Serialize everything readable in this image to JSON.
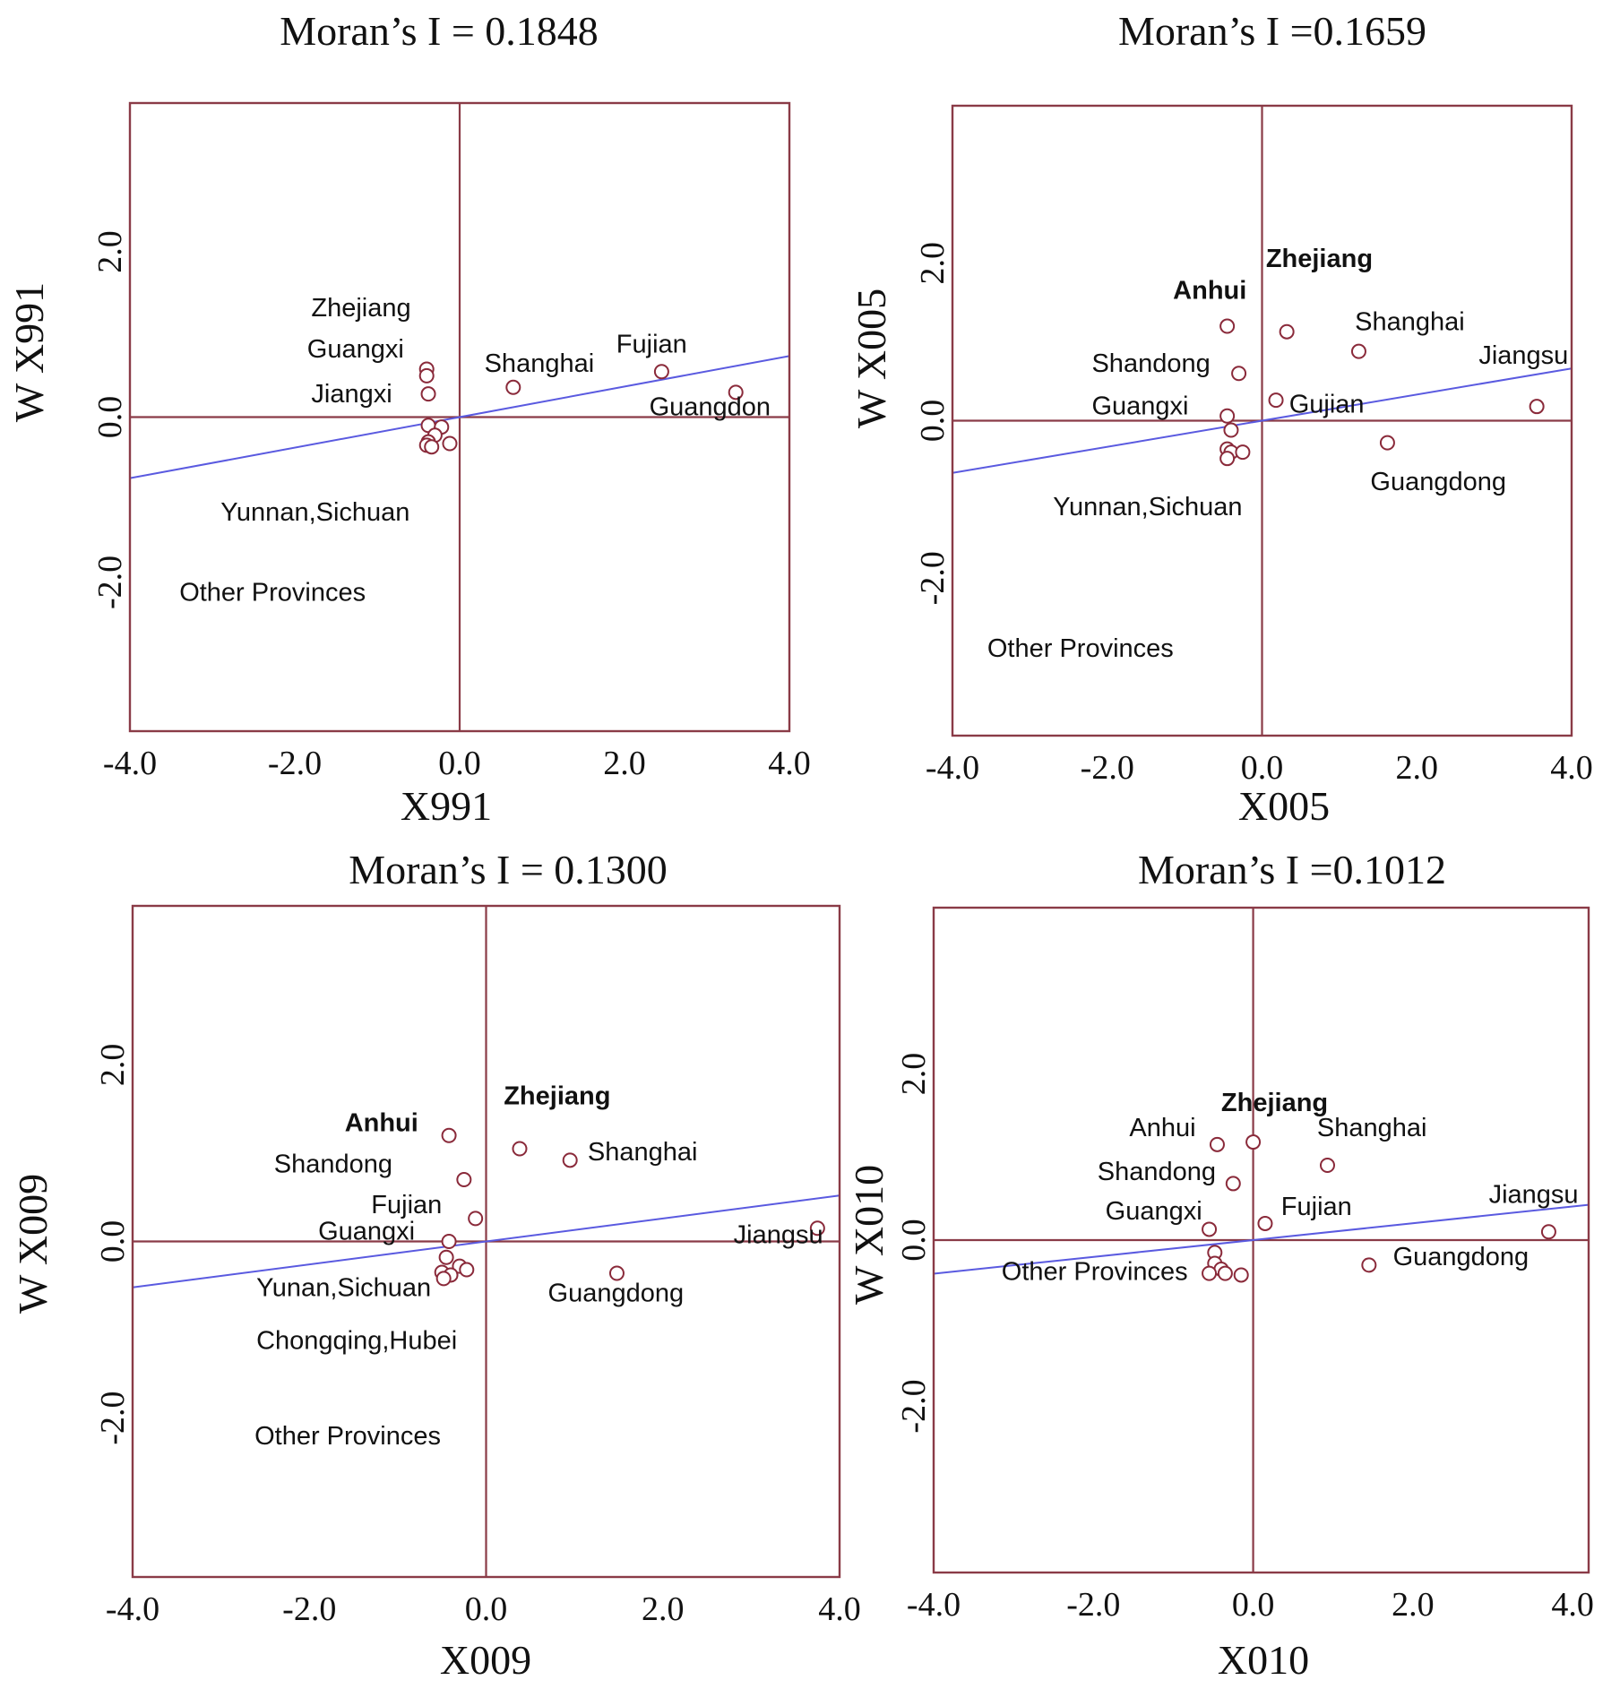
{
  "chart_data": [
    {
      "type": "scatter",
      "title": "Moran’s I = 0.1848",
      "xlabel": "X991",
      "ylabel": "W X991",
      "xlim": [
        -4.0,
        4.0
      ],
      "ylim": [
        -3.8,
        3.8
      ],
      "xticks": [
        "-4.0",
        "-2.0",
        "0.0",
        "2.0",
        "4.0"
      ],
      "yticks": [
        {
          "value": 2.0,
          "label": "2.0"
        },
        {
          "value": 0.0,
          "label": "0.0"
        },
        {
          "value": -2.0,
          "label": "-2.0"
        }
      ],
      "regression": {
        "slope": 0.1848,
        "intercept": 0.0
      },
      "points": [
        {
          "x": -0.4,
          "y": 0.58
        },
        {
          "x": -0.4,
          "y": 0.5
        },
        {
          "x": -0.38,
          "y": 0.28
        },
        {
          "x": -0.38,
          "y": -0.1
        },
        {
          "x": -0.22,
          "y": -0.12
        },
        {
          "x": -0.3,
          "y": -0.22
        },
        {
          "x": -0.38,
          "y": -0.3
        },
        {
          "x": -0.4,
          "y": -0.34
        },
        {
          "x": -0.34,
          "y": -0.36
        },
        {
          "x": -0.12,
          "y": -0.32
        },
        {
          "x": 0.65,
          "y": 0.36
        },
        {
          "x": 2.45,
          "y": 0.55
        },
        {
          "x": 3.35,
          "y": 0.3
        }
      ],
      "labels": [
        {
          "text": "Zhejiang",
          "x": -1.8,
          "y": 1.22,
          "bold": false
        },
        {
          "text": "Guangxi",
          "x": -1.85,
          "y": 0.72,
          "bold": false
        },
        {
          "text": "Jiangxi",
          "x": -1.8,
          "y": 0.18,
          "bold": false
        },
        {
          "text": "Shanghai",
          "x": 0.3,
          "y": 0.55,
          "bold": false
        },
        {
          "text": "Fujian",
          "x": 1.9,
          "y": 0.78,
          "bold": false
        },
        {
          "text": "Guangdon",
          "x": 2.3,
          "y": 0.02,
          "bold": false
        },
        {
          "text": "Yunnan,Sichuan",
          "x": -2.9,
          "y": -1.25,
          "bold": false
        },
        {
          "text": "Other Provinces",
          "x": -3.4,
          "y": -2.22,
          "bold": false
        }
      ]
    },
    {
      "type": "scatter",
      "title": "Moran’s I =0.1659",
      "xlabel": "X005",
      "ylabel": "W X005",
      "xlim": [
        -4.0,
        4.0
      ],
      "ylim": [
        -4.0,
        4.0
      ],
      "xticks": [
        "-4.0",
        "-2.0",
        "0.0",
        "2.0",
        "4.0"
      ],
      "yticks": [
        {
          "value": 2.0,
          "label": "2.0"
        },
        {
          "value": 0.0,
          "label": "0.0"
        },
        {
          "value": -2.0,
          "label": "-2.0"
        }
      ],
      "regression": {
        "slope": 0.1659,
        "intercept": 0.0
      },
      "points": [
        {
          "x": -0.45,
          "y": 1.2
        },
        {
          "x": 0.32,
          "y": 1.13
        },
        {
          "x": 1.25,
          "y": 0.88
        },
        {
          "x": -0.3,
          "y": 0.6
        },
        {
          "x": 0.18,
          "y": 0.26
        },
        {
          "x": -0.45,
          "y": 0.06
        },
        {
          "x": -0.4,
          "y": -0.12
        },
        {
          "x": 1.62,
          "y": -0.28
        },
        {
          "x": -0.45,
          "y": -0.36
        },
        {
          "x": -0.4,
          "y": -0.4
        },
        {
          "x": -0.25,
          "y": -0.4
        },
        {
          "x": -0.45,
          "y": -0.48
        },
        {
          "x": 3.55,
          "y": 0.18
        }
      ],
      "labels": [
        {
          "text": "Zhejiang",
          "x": 0.05,
          "y": 1.95,
          "bold": true
        },
        {
          "text": "Anhui",
          "x": -1.15,
          "y": 1.55,
          "bold": true
        },
        {
          "text": "Shanghai",
          "x": 1.2,
          "y": 1.15,
          "bold": false
        },
        {
          "text": "Jiangsu",
          "x": 2.8,
          "y": 0.72,
          "bold": false
        },
        {
          "text": "Shandong",
          "x": -2.2,
          "y": 0.62,
          "bold": false
        },
        {
          "text": "Guangxi",
          "x": -2.2,
          "y": 0.08,
          "bold": false
        },
        {
          "text": "Gujian",
          "x": 0.35,
          "y": 0.1,
          "bold": false
        },
        {
          "text": "Guangdong",
          "x": 1.4,
          "y": -0.88,
          "bold": false
        },
        {
          "text": "Yunnan,Sichuan",
          "x": -2.7,
          "y": -1.2,
          "bold": false
        },
        {
          "text": "Other Provinces",
          "x": -3.55,
          "y": -3.0,
          "bold": false
        }
      ]
    },
    {
      "type": "scatter",
      "title": "Moran’s I = 0.1300",
      "xlabel": "X009",
      "ylabel": "W X009",
      "xlim": [
        -4.0,
        4.0
      ],
      "ylim": [
        -3.8,
        3.8
      ],
      "xticks": [
        "-4.0",
        "-2.0",
        "0.0",
        "2.0",
        "4.0"
      ],
      "yticks": [
        {
          "value": 2.0,
          "label": "2.0"
        },
        {
          "value": 0.0,
          "label": "0.0"
        },
        {
          "value": -2.0,
          "label": "-2.0"
        }
      ],
      "regression": {
        "slope": 0.13,
        "intercept": 0.0
      },
      "points": [
        {
          "x": -0.42,
          "y": 1.2
        },
        {
          "x": 0.38,
          "y": 1.05
        },
        {
          "x": 0.95,
          "y": 0.92
        },
        {
          "x": -0.25,
          "y": 0.7
        },
        {
          "x": -0.12,
          "y": 0.26
        },
        {
          "x": -0.42,
          "y": 0.0
        },
        {
          "x": -0.45,
          "y": -0.18
        },
        {
          "x": -0.3,
          "y": -0.28
        },
        {
          "x": -0.22,
          "y": -0.32
        },
        {
          "x": -0.5,
          "y": -0.35
        },
        {
          "x": -0.4,
          "y": -0.38
        },
        {
          "x": -0.48,
          "y": -0.42
        },
        {
          "x": 1.48,
          "y": -0.36
        },
        {
          "x": 3.75,
          "y": 0.15
        }
      ],
      "labels": [
        {
          "text": "Zhejiang",
          "x": 0.2,
          "y": 1.55,
          "bold": true
        },
        {
          "text": "Anhui",
          "x": -1.6,
          "y": 1.25,
          "bold": true
        },
        {
          "text": "Shanghai",
          "x": 1.15,
          "y": 0.92,
          "bold": false
        },
        {
          "text": "Shandong",
          "x": -2.4,
          "y": 0.78,
          "bold": false
        },
        {
          "text": "Fujian",
          "x": -1.3,
          "y": 0.32,
          "bold": false
        },
        {
          "text": "Guangxi",
          "x": -1.9,
          "y": 0.02,
          "bold": false
        },
        {
          "text": "Jiangsu",
          "x": 2.8,
          "y": -0.02,
          "bold": false
        },
        {
          "text": "Yunan,Sichuan",
          "x": -2.6,
          "y": -0.62,
          "bold": false
        },
        {
          "text": "Guangdong",
          "x": 0.7,
          "y": -0.68,
          "bold": false
        },
        {
          "text": "Chongqing,Hubei",
          "x": -2.6,
          "y": -1.22,
          "bold": false
        },
        {
          "text": "Other Provinces",
          "x": -2.62,
          "y": -2.3,
          "bold": false
        }
      ]
    },
    {
      "type": "scatter",
      "title": "Moran’s I =0.1012",
      "xlabel": "X010",
      "ylabel": "W X010",
      "xlim": [
        -4.0,
        4.2
      ],
      "ylim": [
        -4.0,
        4.0
      ],
      "xticks": [
        "-4.0",
        "-2.0",
        "0.0",
        "2.0",
        "4.0"
      ],
      "yticks": [
        {
          "value": 2.0,
          "label": "2.0"
        },
        {
          "value": 0.0,
          "label": "0.0"
        },
        {
          "value": -2.0,
          "label": "-2.0"
        }
      ],
      "regression": {
        "slope": 0.1012,
        "intercept": 0.0
      },
      "points": [
        {
          "x": -0.45,
          "y": 1.15
        },
        {
          "x": 0.0,
          "y": 1.18
        },
        {
          "x": 0.93,
          "y": 0.9
        },
        {
          "x": -0.25,
          "y": 0.68
        },
        {
          "x": 0.15,
          "y": 0.2
        },
        {
          "x": -0.55,
          "y": 0.13
        },
        {
          "x": -0.48,
          "y": -0.15
        },
        {
          "x": -0.48,
          "y": -0.28
        },
        {
          "x": -0.4,
          "y": -0.35
        },
        {
          "x": -0.35,
          "y": -0.4
        },
        {
          "x": -0.55,
          "y": -0.4
        },
        {
          "x": -0.15,
          "y": -0.42
        },
        {
          "x": 1.45,
          "y": -0.3
        },
        {
          "x": 3.7,
          "y": 0.1
        }
      ],
      "labels": [
        {
          "text": "Zhejiang",
          "x": -0.4,
          "y": 1.55,
          "bold": true
        },
        {
          "text": "Anhui",
          "x": -1.55,
          "y": 1.25,
          "bold": false
        },
        {
          "text": "Shanghai",
          "x": 0.8,
          "y": 1.25,
          "bold": false
        },
        {
          "text": "Shandong",
          "x": -1.95,
          "y": 0.72,
          "bold": false
        },
        {
          "text": "Jiangsu",
          "x": 2.95,
          "y": 0.45,
          "bold": false
        },
        {
          "text": "Guangxi",
          "x": -1.85,
          "y": 0.25,
          "bold": false
        },
        {
          "text": "Fujian",
          "x": 0.35,
          "y": 0.3,
          "bold": false
        },
        {
          "text": "Guangdong",
          "x": 1.75,
          "y": -0.3,
          "bold": false
        },
        {
          "text": "Other Provinces",
          "x": -3.15,
          "y": -0.48,
          "bold": false
        }
      ]
    }
  ]
}
